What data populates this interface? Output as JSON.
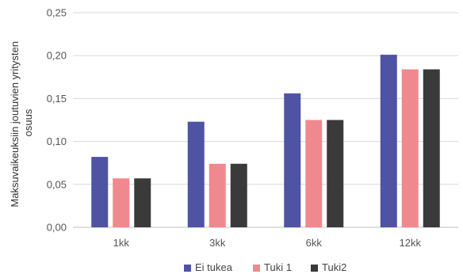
{
  "chart_data": {
    "type": "bar",
    "title": "",
    "xlabel": "",
    "ylabel_lines": [
      "Maksuvaikeuksiin joutuvien yritysten",
      "osuus"
    ],
    "categories": [
      "1kk",
      "3kk",
      "6kk",
      "12kk"
    ],
    "ylim": [
      0,
      0.25
    ],
    "yticks": [
      "0,00",
      "0,05",
      "0,10",
      "0,15",
      "0,20",
      "0,25"
    ],
    "grid": true,
    "legend_position": "bottom",
    "series": [
      {
        "name": "Ei tukea",
        "color": "#4e53a3",
        "values": [
          0.082,
          0.123,
          0.156,
          0.201
        ]
      },
      {
        "name": "Tuki 1",
        "color": "#f0898e",
        "values": [
          0.057,
          0.074,
          0.125,
          0.184
        ]
      },
      {
        "name": "Tuki2",
        "color": "#3a3a3a",
        "values": [
          0.057,
          0.074,
          0.125,
          0.184
        ]
      }
    ]
  }
}
